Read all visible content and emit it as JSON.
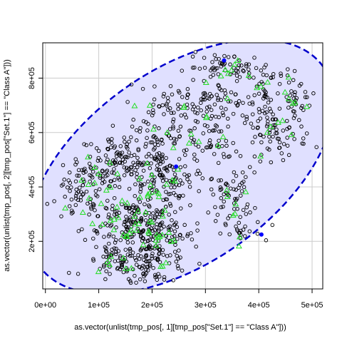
{
  "chart_data": {
    "type": "scatter",
    "xlabel": "as.vector(unlist(tmp_pos[, 1][tmp_pos[\"Set.1\"] == \"Class A\"]))",
    "ylabel": "as.vector(unlist(tmp_pos[, 2][tmp_pos[\"Set.1\"] == \"Class A\"]))",
    "xlim": [
      -5000,
      520000
    ],
    "ylim": [
      25000,
      930000
    ],
    "x_ticks": [
      0,
      100000,
      200000,
      300000,
      400000,
      500000
    ],
    "x_tick_labels": [
      "0e+00",
      "1e+05",
      "2e+05",
      "3e+05",
      "4e+05",
      "5e+05"
    ],
    "y_ticks": [
      200000,
      400000,
      600000,
      800000
    ],
    "y_tick_labels": [
      "2e+05",
      "4e+05",
      "6e+05",
      "8e+05"
    ],
    "grid": true,
    "ellipse": {
      "center": [
        255000,
        475000
      ],
      "semi_axes": [
        325000,
        355000
      ],
      "rotation_deg": 35,
      "fill": "#e0e0ff",
      "stroke": "#0000cc",
      "dashed": true
    },
    "point_clusters": [
      {
        "x": 95000,
        "y": 430000,
        "sx": 30000,
        "sy": 40000,
        "n": 70,
        "green": 8
      },
      {
        "x": 60000,
        "y": 340000,
        "sx": 25000,
        "sy": 30000,
        "n": 25,
        "green": 3
      },
      {
        "x": 160000,
        "y": 280000,
        "sx": 45000,
        "sy": 50000,
        "n": 140,
        "green": 25
      },
      {
        "x": 210000,
        "y": 220000,
        "sx": 35000,
        "sy": 40000,
        "n": 80,
        "green": 14
      },
      {
        "x": 150000,
        "y": 120000,
        "sx": 40000,
        "sy": 40000,
        "n": 90,
        "green": 6
      },
      {
        "x": 210000,
        "y": 120000,
        "sx": 30000,
        "sy": 35000,
        "n": 50,
        "green": 3
      },
      {
        "x": 200000,
        "y": 400000,
        "sx": 30000,
        "sy": 40000,
        "n": 55,
        "green": 10
      },
      {
        "x": 140000,
        "y": 500000,
        "sx": 40000,
        "sy": 50000,
        "n": 70,
        "green": 3
      },
      {
        "x": 205000,
        "y": 560000,
        "sx": 30000,
        "sy": 60000,
        "n": 80,
        "green": 3
      },
      {
        "x": 245000,
        "y": 700000,
        "sx": 50000,
        "sy": 40000,
        "n": 70,
        "green": 5
      },
      {
        "x": 300000,
        "y": 560000,
        "sx": 30000,
        "sy": 45000,
        "n": 45,
        "green": 5
      },
      {
        "x": 250000,
        "y": 430000,
        "sx": 35000,
        "sy": 40000,
        "n": 45,
        "green": 3
      },
      {
        "x": 350000,
        "y": 370000,
        "sx": 20000,
        "sy": 50000,
        "n": 55,
        "green": 6
      },
      {
        "x": 360000,
        "y": 230000,
        "sx": 25000,
        "sy": 25000,
        "n": 20,
        "green": 2
      },
      {
        "x": 345000,
        "y": 840000,
        "sx": 40000,
        "sy": 25000,
        "n": 60,
        "green": 8
      },
      {
        "x": 430000,
        "y": 600000,
        "sx": 30000,
        "sy": 50000,
        "n": 80,
        "green": 6
      },
      {
        "x": 420000,
        "y": 760000,
        "sx": 30000,
        "sy": 50000,
        "n": 45,
        "green": 5
      },
      {
        "x": 330000,
        "y": 700000,
        "sx": 30000,
        "sy": 40000,
        "n": 35,
        "green": 2
      },
      {
        "x": 470000,
        "y": 720000,
        "sx": 15000,
        "sy": 30000,
        "n": 20,
        "green": 4
      }
    ],
    "blue_points": [
      {
        "x": 245000,
        "y": 475000
      },
      {
        "x": 405000,
        "y": 225000
      },
      {
        "x": 335000,
        "y": 865000
      }
    ],
    "colors": {
      "open_circle": "#000000",
      "triangle": "#22dd22",
      "highlight": "#0000ff",
      "grid": "#cccccc"
    }
  }
}
